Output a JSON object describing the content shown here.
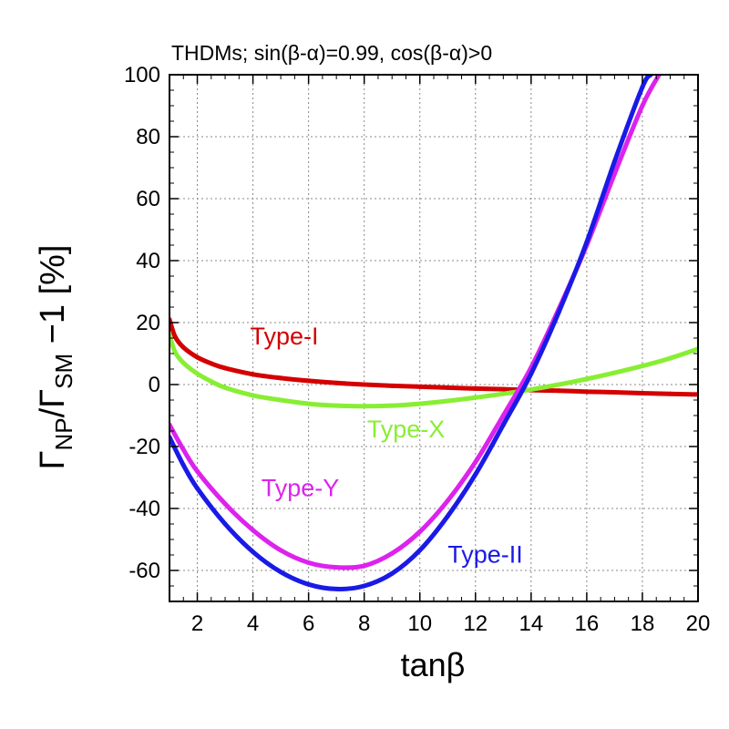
{
  "chart_data": {
    "type": "scatter",
    "title": "THDMs; sin(β-α)=0.99, cos(β-α)>0",
    "xlabel": "tanβ",
    "ylabel": {
      "main1": "Γ",
      "sub1": "NP",
      "main2": "/Γ",
      "sub2": "SM",
      "main3": " −1 [%]"
    },
    "xlim": [
      1,
      20
    ],
    "ylim": [
      -70,
      100
    ],
    "xticks": [
      2,
      4,
      6,
      8,
      10,
      12,
      14,
      16,
      18,
      20
    ],
    "xtick_labels": [
      "2",
      "4",
      "6",
      "8",
      "10",
      "12",
      "14",
      "16",
      "18",
      "20"
    ],
    "yticks": [
      -60,
      -40,
      -20,
      0,
      20,
      40,
      60,
      80,
      100
    ],
    "ytick_labels": [
      "-60",
      "-40",
      "-20",
      "0",
      "20",
      "40",
      "60",
      "80",
      "100"
    ],
    "grid": true,
    "series": [
      {
        "name": "Type-I",
        "color": "#d40000",
        "label_at": [
          3.9,
          13
        ],
        "x": [
          1.0,
          1.2,
          1.5,
          2.0,
          2.5,
          3.0,
          4.0,
          5.0,
          6.0,
          7.0,
          8.0,
          9.0,
          10.0,
          11.0,
          12.0,
          13.0,
          14.0,
          15.0,
          16.0,
          17.0,
          18.0,
          19.0,
          20.0
        ],
        "y": [
          21.0,
          15.5,
          12.0,
          8.8,
          6.8,
          5.3,
          3.3,
          2.1,
          1.2,
          0.5,
          0.0,
          -0.4,
          -0.7,
          -1.0,
          -1.3,
          -1.5,
          -1.8,
          -2.0,
          -2.3,
          -2.5,
          -2.8,
          -3.0,
          -3.2
        ]
      },
      {
        "name": "Type-X",
        "color": "#88ee33",
        "label_at": [
          8.1,
          -17
        ],
        "x": [
          1.0,
          1.2,
          1.5,
          2.0,
          2.5,
          3.0,
          4.0,
          5.0,
          6.0,
          7.0,
          8.0,
          9.0,
          10.0,
          11.0,
          12.0,
          13.0,
          14.0,
          15.0,
          16.0,
          17.0,
          18.0,
          19.0,
          20.0
        ],
        "y": [
          16.0,
          10.5,
          7.0,
          3.5,
          1.0,
          -1.0,
          -3.5,
          -5.0,
          -6.2,
          -6.8,
          -7.0,
          -6.8,
          -6.2,
          -5.3,
          -4.2,
          -3.0,
          -1.6,
          0.0,
          1.8,
          3.8,
          6.0,
          8.5,
          11.5
        ]
      },
      {
        "name": "Type-Y",
        "color": "#dd22ee",
        "label_at": [
          4.3,
          -36
        ],
        "x": [
          1.0,
          1.5,
          2.0,
          3.0,
          4.0,
          5.0,
          6.0,
          7.0,
          8.0,
          9.0,
          10.0,
          11.0,
          12.0,
          13.0,
          14.0,
          15.0,
          16.0,
          17.0,
          18.0,
          18.6
        ],
        "y": [
          -13.0,
          -21.0,
          -28.0,
          -38.5,
          -47.0,
          -53.5,
          -57.5,
          -59.0,
          -58.5,
          -54.5,
          -47.5,
          -37.5,
          -25.0,
          -10.0,
          5.5,
          24.5,
          45.0,
          68.0,
          90.0,
          100.0
        ]
      },
      {
        "name": "Type-II",
        "color": "#1a1ae6",
        "label_at": [
          11.0,
          -57.5
        ],
        "x": [
          1.0,
          1.5,
          2.0,
          3.0,
          4.0,
          5.0,
          6.0,
          7.0,
          8.0,
          9.0,
          10.0,
          11.0,
          12.0,
          13.0,
          14.0,
          15.0,
          16.0,
          17.0,
          18.0,
          18.3
        ],
        "y": [
          -17.0,
          -26.0,
          -33.5,
          -45.0,
          -54.0,
          -60.5,
          -64.5,
          -66.0,
          -65.0,
          -61.0,
          -53.5,
          -42.5,
          -29.0,
          -13.0,
          3.5,
          23.5,
          46.0,
          72.0,
          96.0,
          100.0
        ]
      }
    ]
  }
}
